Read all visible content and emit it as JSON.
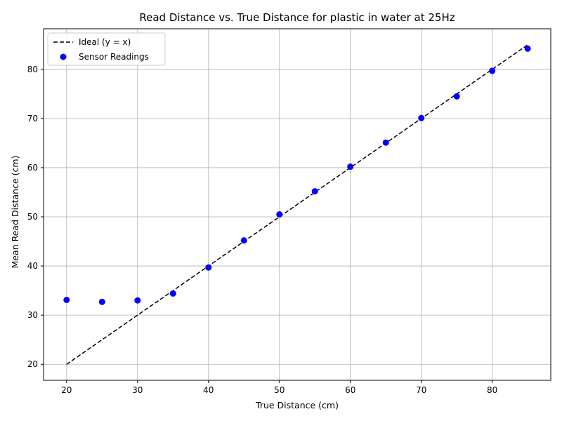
{
  "chart_data": {
    "type": "scatter",
    "title": "Read Distance vs. True Distance for plastic in water at 25Hz",
    "xlabel": "True Distance (cm)",
    "ylabel": "Mean Read Distance (cm)",
    "xlim": [
      16.75,
      88.25
    ],
    "ylim": [
      16.75,
      88.25
    ],
    "xticks": [
      20,
      30,
      40,
      50,
      60,
      70,
      80
    ],
    "yticks": [
      20,
      30,
      40,
      50,
      60,
      70,
      80
    ],
    "grid": true,
    "legend_position": "top-left",
    "series": [
      {
        "name": "Ideal (y = x)",
        "kind": "line",
        "style": "dashed",
        "color": "#000000",
        "x": [
          20,
          85
        ],
        "y": [
          20,
          85
        ]
      },
      {
        "name": "Sensor Readings",
        "kind": "scatter",
        "color": "#0000ff",
        "x": [
          20,
          25,
          30,
          35,
          40,
          45,
          50,
          55,
          60,
          65,
          70,
          75,
          80,
          85
        ],
        "y": [
          33.1,
          32.7,
          33.0,
          34.4,
          39.7,
          45.2,
          50.5,
          55.2,
          60.2,
          65.1,
          70.1,
          74.5,
          79.7,
          84.2
        ]
      }
    ]
  }
}
